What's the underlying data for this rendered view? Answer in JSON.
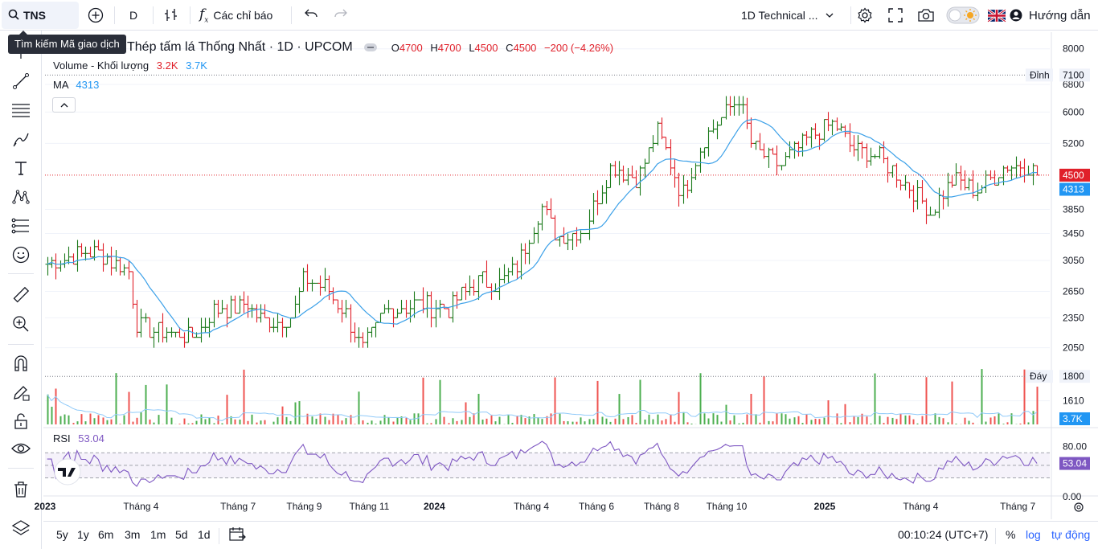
{
  "toolbar": {
    "symbol": "TNS",
    "interval": "D",
    "indicators_label": "Các chỉ báo",
    "template_label": "1D Technical ...",
    "guide_label": "Hướng dẫn",
    "icons": [
      "search-icon",
      "add-symbol-icon",
      "compare-icon",
      "indicators-icon",
      "undo-icon",
      "redo-icon",
      "gear-icon",
      "fullscreen-icon",
      "camera-icon",
      "theme-toggle-icon",
      "flag-uk-icon",
      "user-icon"
    ]
  },
  "tooltip": "Tìm kiếm Mã giao dịch",
  "legend": {
    "title": "Thép tấm lá Thống Nhất · 1D · UPCOM",
    "o_label": "O",
    "o": "4700",
    "h_label": "H",
    "h": "4700",
    "l_label": "L",
    "l": "4500",
    "c_label": "C",
    "c": "4500",
    "change": "−200 (−4.26%)",
    "volume_label": "Volume - Khối lượng",
    "volume_v1": "3.2K",
    "volume_v2": "3.7K",
    "ma_label": "MA",
    "ma_value": "4313",
    "rsi_label": "RSI",
    "rsi_value": "53.04"
  },
  "price_axis": {
    "ticks": [
      "8000",
      "6800",
      "6000",
      "5200",
      "3850",
      "3450",
      "3050",
      "2650",
      "2350",
      "2050",
      "1610"
    ],
    "high_label": "Đỉnh",
    "high_value": "7100",
    "low_label": "Đáy",
    "low_value": "1800",
    "last_price": "4500",
    "ma_last": "4313",
    "vol_last": "3.7K"
  },
  "rsi_axis": {
    "ticks": [
      "80.00",
      "0.00"
    ],
    "value": "53.04"
  },
  "time_axis": {
    "labels": [
      "2023",
      "Tháng 4",
      "Tháng 7",
      "Tháng 9",
      "Tháng 11",
      "2024",
      "Tháng 4",
      "Tháng 6",
      "Tháng 8",
      "Tháng 10",
      "2025",
      "Tháng 4",
      "Tháng 7"
    ]
  },
  "bottom": {
    "ranges": [
      "5y",
      "1y",
      "6m",
      "3m",
      "1m",
      "5d",
      "1d"
    ],
    "clock": "00:10:24 (UTC+7)",
    "percent": "%",
    "log": "log",
    "auto": "tự động"
  },
  "colors": {
    "up": "#1b7a1b",
    "down": "#e0202a",
    "ma": "#3ba0e8",
    "rsi": "#7e57c2",
    "accent": "#2962ff",
    "vol_up": "#4caf50",
    "vol_down": "#ef5350"
  },
  "chart_data": {
    "type": "ohlc",
    "start": "2023-01-01",
    "end": "2025-07-31",
    "price_min": 1800,
    "price_max": 7100,
    "last": 4500,
    "ma_last": 4313,
    "rsi_last": 53.04,
    "anchors_close": [
      [
        "2023-01-03",
        3000
      ],
      [
        "2023-02-15",
        3200
      ],
      [
        "2023-03-20",
        2900
      ],
      [
        "2023-03-28",
        2300
      ],
      [
        "2023-04-20",
        2200
      ],
      [
        "2023-05-20",
        2150
      ],
      [
        "2023-06-10",
        2450
      ],
      [
        "2023-07-10",
        2500
      ],
      [
        "2023-07-25",
        2300
      ],
      [
        "2023-08-20",
        2350
      ],
      [
        "2023-09-01",
        2800
      ],
      [
        "2023-09-20",
        2700
      ],
      [
        "2023-10-10",
        2400
      ],
      [
        "2023-10-25",
        2000
      ],
      [
        "2023-11-15",
        2400
      ],
      [
        "2023-12-10",
        2500
      ],
      [
        "2024-01-15",
        2450
      ],
      [
        "2024-02-10",
        2800
      ],
      [
        "2024-03-01",
        2750
      ],
      [
        "2024-03-20",
        3000
      ],
      [
        "2024-04-10",
        3900
      ],
      [
        "2024-04-25",
        3400
      ],
      [
        "2024-05-20",
        3500
      ],
      [
        "2024-06-15",
        4700
      ],
      [
        "2024-07-10",
        4400
      ],
      [
        "2024-07-28",
        5500
      ],
      [
        "2024-08-20",
        4100
      ],
      [
        "2024-09-10",
        5300
      ],
      [
        "2024-09-28",
        5900
      ],
      [
        "2024-10-12",
        6400
      ],
      [
        "2024-10-25",
        5100
      ],
      [
        "2024-11-20",
        4700
      ],
      [
        "2024-12-20",
        5400
      ],
      [
        "2025-01-10",
        5700
      ],
      [
        "2025-01-25",
        5100
      ],
      [
        "2025-02-20",
        4900
      ],
      [
        "2025-03-15",
        4400
      ],
      [
        "2025-04-10",
        3800
      ],
      [
        "2025-05-01",
        4400
      ],
      [
        "2025-05-25",
        4200
      ],
      [
        "2025-06-20",
        4700
      ],
      [
        "2025-07-10",
        4700
      ],
      [
        "2025-07-22",
        4500
      ]
    ]
  }
}
